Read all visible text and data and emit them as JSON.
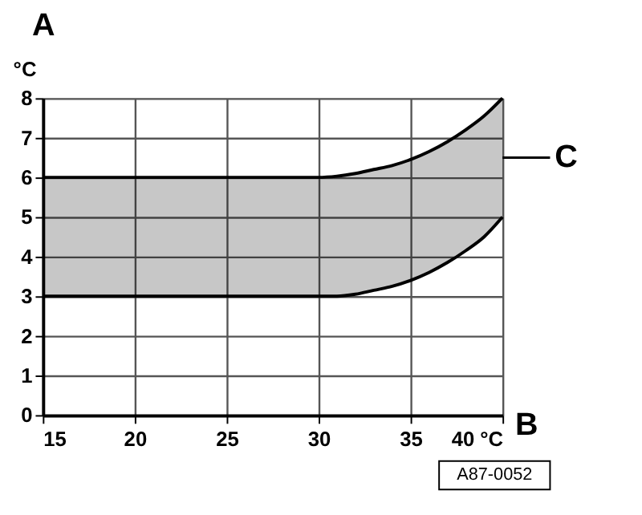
{
  "chart_data": {
    "type": "line",
    "xlabel": "B",
    "ylabel": "A",
    "x": [
      15,
      20,
      25,
      30,
      31,
      32,
      33,
      34,
      35,
      36,
      37,
      38,
      39,
      40
    ],
    "series": [
      {
        "color": "#000000",
        "values": [
          6,
          6,
          6,
          6,
          6.03,
          6.1,
          6.2,
          6.3,
          6.45,
          6.65,
          6.9,
          7.2,
          7.55,
          8
        ],
        "lower": [
          3,
          3,
          3,
          3,
          3,
          3.05,
          3.15,
          3.25,
          3.4,
          3.6,
          3.85,
          4.15,
          4.5,
          5
        ],
        "upper": [
          6,
          6,
          6,
          6,
          6.03,
          6.1,
          6.2,
          6.3,
          6.45,
          6.65,
          6.9,
          7.2,
          7.55,
          8
        ]
      },
      {
        "color": "#000000",
        "values": [
          3,
          3,
          3,
          3,
          3,
          3.05,
          3.15,
          3.25,
          3.4,
          3.6,
          3.85,
          4.15,
          4.5,
          5
        ]
      }
    ],
    "xlim": [
      15,
      40
    ],
    "ylim": [
      0,
      8
    ],
    "xticks": [
      15,
      20,
      25,
      30,
      35,
      {
        "value": 40,
        "label": "40 °C"
      }
    ],
    "yticks": [
      0,
      1,
      2,
      3,
      4,
      5,
      6,
      7,
      8
    ],
    "grid": true,
    "annotations": [
      "°C",
      {
        "text": "C",
        "x": 40,
        "y": 6.5
      },
      "A87-0052"
    ]
  }
}
